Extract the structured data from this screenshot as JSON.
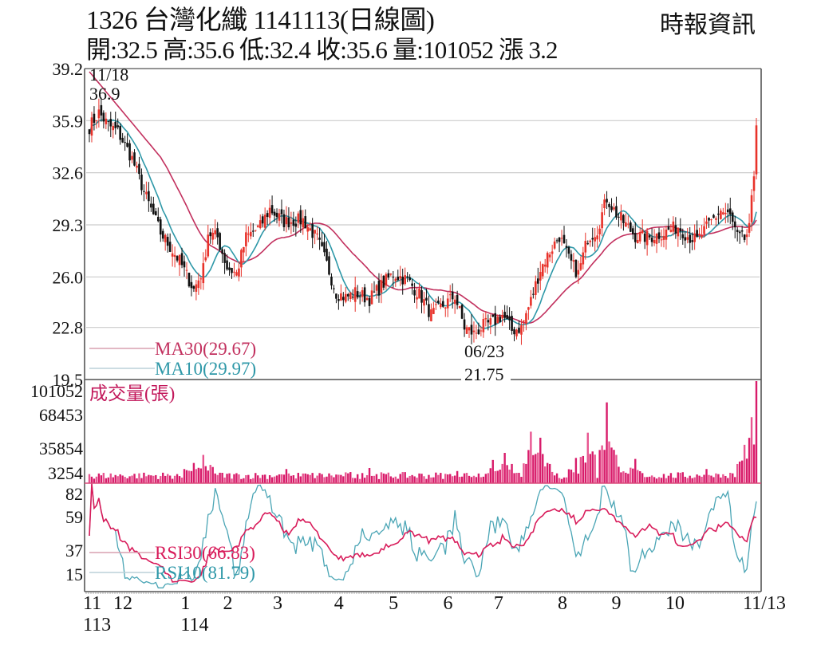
{
  "header": {
    "title": "1326  台灣化纖 1141113(日線圖)",
    "subtitle": "開:32.5 高:35.6 低:32.4 收:35.6 量:101052 漲 3.2",
    "brand": "時報資訊"
  },
  "colors": {
    "up": "#e8322a",
    "down": "#111111",
    "ma30": "#c2305e",
    "ma10": "#2e98a8",
    "volume": "#d81b6a",
    "rsi30": "#d81b5a",
    "rsi10": "#4aa5b5",
    "grid": "#cccccc",
    "frame": "#555555"
  },
  "annotations": {
    "high_date": "11/18",
    "high_value": "36.9",
    "low_date": "06/23",
    "low_value": "21.75"
  },
  "legend": {
    "ma30": "MA30(29.67)",
    "ma10": "MA10(29.97)",
    "volume": "成交量(張)",
    "rsi30": "RSI30(66.83)",
    "rsi10": "RSI10(81.79)"
  },
  "chart_data": [
    {
      "type": "candlestick",
      "title": "1326 台灣化纖 1141113(日線圖)",
      "y_ticks": [
        "39.2",
        "35.9",
        "32.6",
        "29.3",
        "26.0",
        "22.8",
        "19.5"
      ],
      "ylim": [
        19.5,
        39.2
      ],
      "grid": true,
      "x_ticks": [
        {
          "label": "11",
          "sub": "113",
          "pos": 0.0
        },
        {
          "label": "12",
          "pos": 0.045
        },
        {
          "label": "1",
          "sub": "114",
          "pos": 0.145
        },
        {
          "label": "2",
          "pos": 0.208
        },
        {
          "label": "3",
          "pos": 0.282
        },
        {
          "label": "4",
          "pos": 0.373
        },
        {
          "label": "5",
          "pos": 0.454
        },
        {
          "label": "6",
          "pos": 0.535
        },
        {
          "label": "7",
          "pos": 0.61
        },
        {
          "label": "8",
          "pos": 0.705
        },
        {
          "label": "9",
          "pos": 0.785
        },
        {
          "label": "10",
          "pos": 0.865
        },
        {
          "label": "11/13",
          "pos": 1.0
        }
      ],
      "close_keypoints": [
        [
          0,
          35.5
        ],
        [
          4,
          36.4
        ],
        [
          8,
          35.6
        ],
        [
          12,
          35.2
        ],
        [
          18,
          33.5
        ],
        [
          24,
          31.0
        ],
        [
          30,
          28.8
        ],
        [
          38,
          27.0
        ],
        [
          44,
          25.2
        ],
        [
          48,
          26.5
        ],
        [
          50,
          28.8
        ],
        [
          54,
          28.5
        ],
        [
          58,
          26.6
        ],
        [
          62,
          26.2
        ],
        [
          66,
          28.5
        ],
        [
          72,
          29.2
        ],
        [
          76,
          30.3
        ],
        [
          82,
          29.5
        ],
        [
          90,
          29.6
        ],
        [
          96,
          28.4
        ],
        [
          100,
          26.8
        ],
        [
          104,
          25.0
        ],
        [
          108,
          24.7
        ],
        [
          112,
          25.0
        ],
        [
          118,
          24.6
        ],
        [
          124,
          25.6
        ],
        [
          128,
          26.2
        ],
        [
          134,
          25.8
        ],
        [
          140,
          24.7
        ],
        [
          144,
          23.6
        ],
        [
          150,
          24.3
        ],
        [
          154,
          24.8
        ],
        [
          158,
          22.8
        ],
        [
          162,
          22.4
        ],
        [
          166,
          22.9
        ],
        [
          170,
          23.1
        ],
        [
          174,
          23.6
        ],
        [
          178,
          22.6
        ],
        [
          182,
          22.8
        ],
        [
          186,
          24.5
        ],
        [
          190,
          26.5
        ],
        [
          194,
          27.6
        ],
        [
          198,
          28.6
        ],
        [
          202,
          27.1
        ],
        [
          206,
          26.2
        ],
        [
          210,
          28.5
        ],
        [
          214,
          29.0
        ],
        [
          218,
          31.0
        ],
        [
          222,
          30.0
        ],
        [
          226,
          29.3
        ],
        [
          230,
          28.6
        ],
        [
          236,
          28.5
        ],
        [
          242,
          28.8
        ],
        [
          248,
          29.2
        ],
        [
          252,
          28.6
        ],
        [
          256,
          28.3
        ],
        [
          262,
          29.5
        ],
        [
          266,
          30.2
        ],
        [
          270,
          29.8
        ],
        [
          273,
          28.5
        ],
        [
          276,
          28.4
        ],
        [
          278,
          29.0
        ],
        [
          280,
          32.5
        ],
        [
          281,
          35.6
        ]
      ],
      "high_point": {
        "date": "11/18",
        "value": 36.9
      },
      "low_point": {
        "date": "06/23",
        "value": 21.75
      },
      "last_bar": {
        "open": 32.5,
        "high": 35.6,
        "low": 32.4,
        "close": 35.6,
        "volume": 101052,
        "change": 3.2
      },
      "series": [
        {
          "name": "MA30",
          "last": 29.67
        },
        {
          "name": "MA10",
          "last": 29.97
        }
      ]
    },
    {
      "type": "bar",
      "title": "成交量(張)",
      "y_ticks": [
        "101052",
        "68453",
        "35854",
        "3254"
      ],
      "ylim": [
        3254,
        101052
      ],
      "spike_keypoints": [
        [
          0,
          9000
        ],
        [
          40,
          14000
        ],
        [
          44,
          20000
        ],
        [
          48,
          28000
        ],
        [
          52,
          16000
        ],
        [
          80,
          8000
        ],
        [
          83,
          14000
        ],
        [
          110,
          11000
        ],
        [
          118,
          15000
        ],
        [
          155,
          12000
        ],
        [
          170,
          23000
        ],
        [
          175,
          30000
        ],
        [
          186,
          51000
        ],
        [
          188,
          22000
        ],
        [
          190,
          45000
        ],
        [
          194,
          19000
        ],
        [
          205,
          25000
        ],
        [
          210,
          50000
        ],
        [
          218,
          80000
        ],
        [
          222,
          28000
        ],
        [
          230,
          24000
        ],
        [
          260,
          14000
        ],
        [
          276,
          38000
        ],
        [
          278,
          40000
        ],
        [
          281,
          101052
        ]
      ],
      "last": 101052
    },
    {
      "type": "line",
      "title": "RSI",
      "y_ticks": [
        "82",
        "59",
        "37",
        "15"
      ],
      "ylim": [
        0,
        100
      ],
      "series": [
        {
          "name": "RSI30",
          "last": 66.83
        },
        {
          "name": "RSI10",
          "last": 81.79
        }
      ]
    }
  ]
}
